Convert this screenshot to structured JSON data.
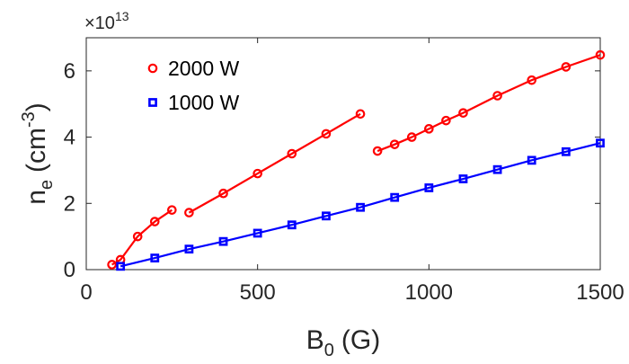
{
  "chart_data": {
    "type": "line",
    "xlabel": "B",
    "xlabel_sub": "0",
    "xlabel_unit": "(G)",
    "ylabel": "n",
    "ylabel_sub": "e",
    "ylabel_unit_open": "(cm",
    "ylabel_unit_sup": "-3",
    "ylabel_unit_close": ")",
    "y_multiplier_prefix": "×10",
    "y_multiplier_exp": "13",
    "xlim": [
      0,
      1500
    ],
    "ylim": [
      0,
      7
    ],
    "xticks": [
      0,
      500,
      1000,
      1500
    ],
    "xtick_labels": [
      "0",
      "500",
      "1000",
      "1500"
    ],
    "yticks": [
      0,
      2,
      4,
      6
    ],
    "ytick_labels": [
      "0",
      "2",
      "4",
      "6"
    ],
    "grid": false,
    "legend_position": "top-left",
    "series": [
      {
        "name": "2000 W",
        "color": "#ff0000",
        "marker": "circle",
        "segments": [
          {
            "x": [
              75,
              100,
              150,
              200,
              250
            ],
            "y": [
              0.15,
              0.3,
              1.0,
              1.45,
              1.8
            ]
          },
          {
            "x": [
              300,
              400,
              500,
              600,
              700,
              800
            ],
            "y": [
              1.72,
              2.3,
              2.9,
              3.5,
              4.1,
              4.7
            ]
          },
          {
            "x": [
              850,
              900,
              950,
              1000,
              1050,
              1100,
              1200,
              1300,
              1400,
              1500
            ],
            "y": [
              3.58,
              3.78,
              4.0,
              4.25,
              4.5,
              4.73,
              5.25,
              5.72,
              6.12,
              6.48
            ]
          }
        ]
      },
      {
        "name": "1000 W",
        "color": "#0000ff",
        "marker": "square",
        "segments": [
          {
            "x": [
              100,
              200,
              300,
              400,
              500,
              600,
              700,
              800,
              900,
              1000,
              1100,
              1200,
              1300,
              1400,
              1500
            ],
            "y": [
              0.1,
              0.35,
              0.62,
              0.85,
              1.1,
              1.35,
              1.62,
              1.88,
              2.18,
              2.47,
              2.74,
              3.02,
              3.3,
              3.56,
              3.82
            ]
          }
        ]
      }
    ]
  }
}
